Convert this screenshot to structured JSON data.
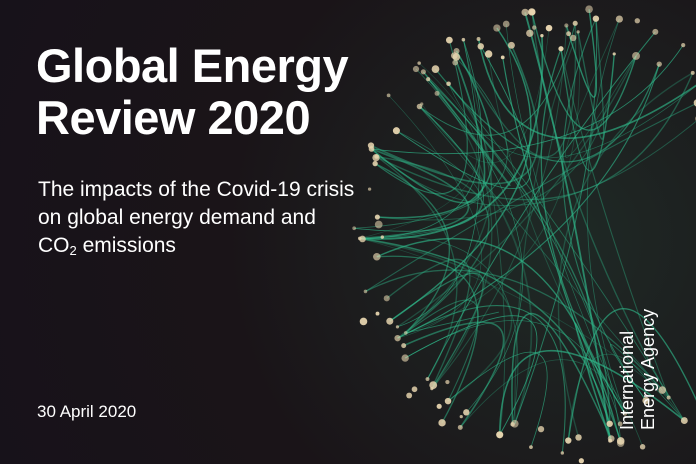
{
  "cover": {
    "title_line1": "Global Energy",
    "title_line2": "Review 2020",
    "subtitle_line1": "The impacts of the Covid-19 crisis",
    "subtitle_line2": "on global energy demand and",
    "subtitle_co": "CO",
    "subtitle_sub": "2",
    "subtitle_tail": " emissions",
    "date": "30 April 2020",
    "publisher_line1": "International",
    "publisher_line2": "Energy Agency"
  },
  "colors": {
    "background": "#1a1418",
    "network_line": "#2fb88a",
    "network_node": "#e8d6b0",
    "text": "#ffffff"
  }
}
